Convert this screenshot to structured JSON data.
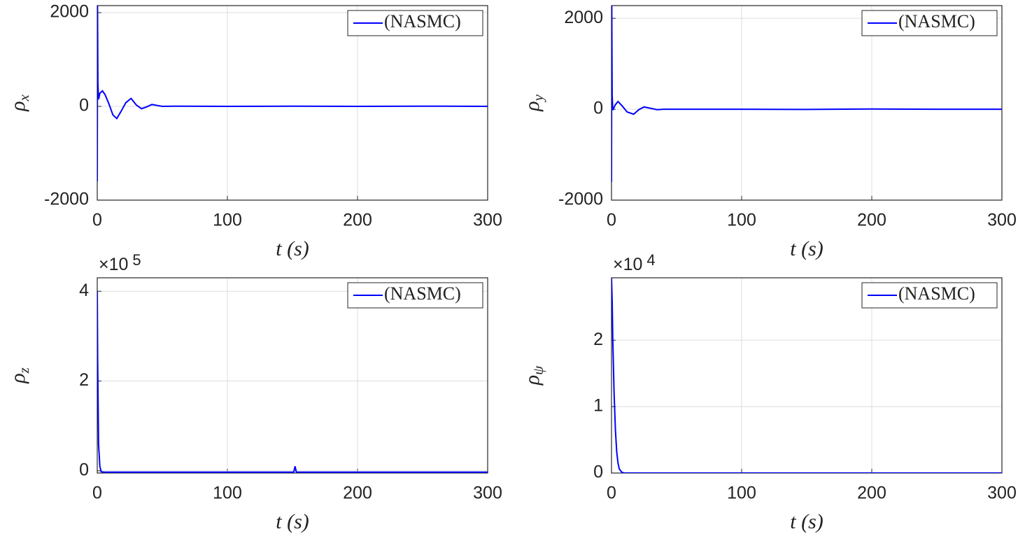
{
  "chart_data": [
    {
      "type": "line",
      "xlabel": "t (s)",
      "ylabel": {
        "symbol": "ρ",
        "subscript": "x"
      },
      "xlim": [
        0,
        300
      ],
      "xticks": [
        0,
        100,
        200,
        300
      ],
      "ylim": [
        -2000,
        2150
      ],
      "yticks": [
        -2000,
        0,
        2000
      ],
      "grid": true,
      "legend": "top-right",
      "series": [
        {
          "name": "(NASMC)",
          "color": "#0000ff",
          "x": [
            0,
            0.2,
            0.5,
            1,
            2,
            4,
            6,
            9,
            12,
            15,
            18,
            22,
            26,
            30,
            34,
            38,
            42,
            46,
            50,
            60,
            100,
            150,
            200,
            250,
            300
          ],
          "values": [
            -1600,
            2150,
            500,
            150,
            280,
            330,
            250,
            50,
            -180,
            -260,
            -120,
            80,
            170,
            30,
            -50,
            -10,
            40,
            20,
            0,
            5,
            0,
            5,
            0,
            5,
            0
          ]
        }
      ]
    },
    {
      "type": "line",
      "xlabel": "t (s)",
      "ylabel": {
        "symbol": "ρ",
        "subscript": "y"
      },
      "xlim": [
        0,
        300
      ],
      "xticks": [
        0,
        100,
        200,
        300
      ],
      "ylim": [
        -2000,
        2280
      ],
      "yticks": [
        -2000,
        0,
        2000
      ],
      "grid": true,
      "legend": "top-right",
      "series": [
        {
          "name": "(NASMC)",
          "color": "#0000ff",
          "x": [
            0,
            0.2,
            0.5,
            1,
            3,
            5,
            8,
            12,
            17,
            21,
            25,
            30,
            35,
            40,
            60,
            100,
            150,
            200,
            250,
            300
          ],
          "values": [
            -1600,
            2280,
            300,
            -20,
            100,
            170,
            80,
            -60,
            -110,
            -10,
            50,
            20,
            -10,
            0,
            0,
            0,
            -5,
            5,
            0,
            0
          ]
        }
      ]
    },
    {
      "type": "line",
      "xlabel": "t (s)",
      "ylabel": {
        "symbol": "ρ",
        "subscript": "z"
      },
      "y_multiplier": {
        "base": "×10",
        "exponent": "5"
      },
      "xlim": [
        0,
        300
      ],
      "xticks": [
        0,
        100,
        200,
        300
      ],
      "ylim": [
        -5000,
        430000
      ],
      "yticks": [
        0,
        {
          "value": 200000,
          "label": "2"
        },
        {
          "value": 400000,
          "label": "4"
        }
      ],
      "grid": true,
      "legend": "top-right",
      "series": [
        {
          "name": "(NASMC)",
          "color": "#0000ff",
          "x": [
            0,
            0.3,
            1,
            2,
            3,
            5,
            10,
            100,
            151,
            152,
            153,
            200,
            300
          ],
          "values": [
            400000,
            250000,
            60000,
            10000,
            -2000,
            -3000,
            -3000,
            -3000,
            -3000,
            10000,
            -3000,
            -3000,
            -3000
          ]
        }
      ]
    },
    {
      "type": "line",
      "xlabel": "t (s)",
      "ylabel": {
        "symbol": "ρ",
        "subscript": "ψ"
      },
      "y_multiplier": {
        "base": "×10",
        "exponent": "4"
      },
      "xlim": [
        0,
        300
      ],
      "xticks": [
        0,
        100,
        200,
        300
      ],
      "ylim": [
        0,
        29400
      ],
      "yticks": [
        0,
        {
          "value": 10000,
          "label": "1"
        },
        {
          "value": 20000,
          "label": "2"
        }
      ],
      "grid": true,
      "legend": "top-right",
      "series": [
        {
          "name": "(NASMC)",
          "color": "#0000ff",
          "x": [
            0,
            0.5,
            1,
            2,
            3,
            4,
            5,
            6,
            8,
            10,
            300
          ],
          "values": [
            29400,
            26000,
            20000,
            12000,
            6500,
            3200,
            1500,
            600,
            100,
            0,
            0
          ]
        }
      ]
    }
  ]
}
